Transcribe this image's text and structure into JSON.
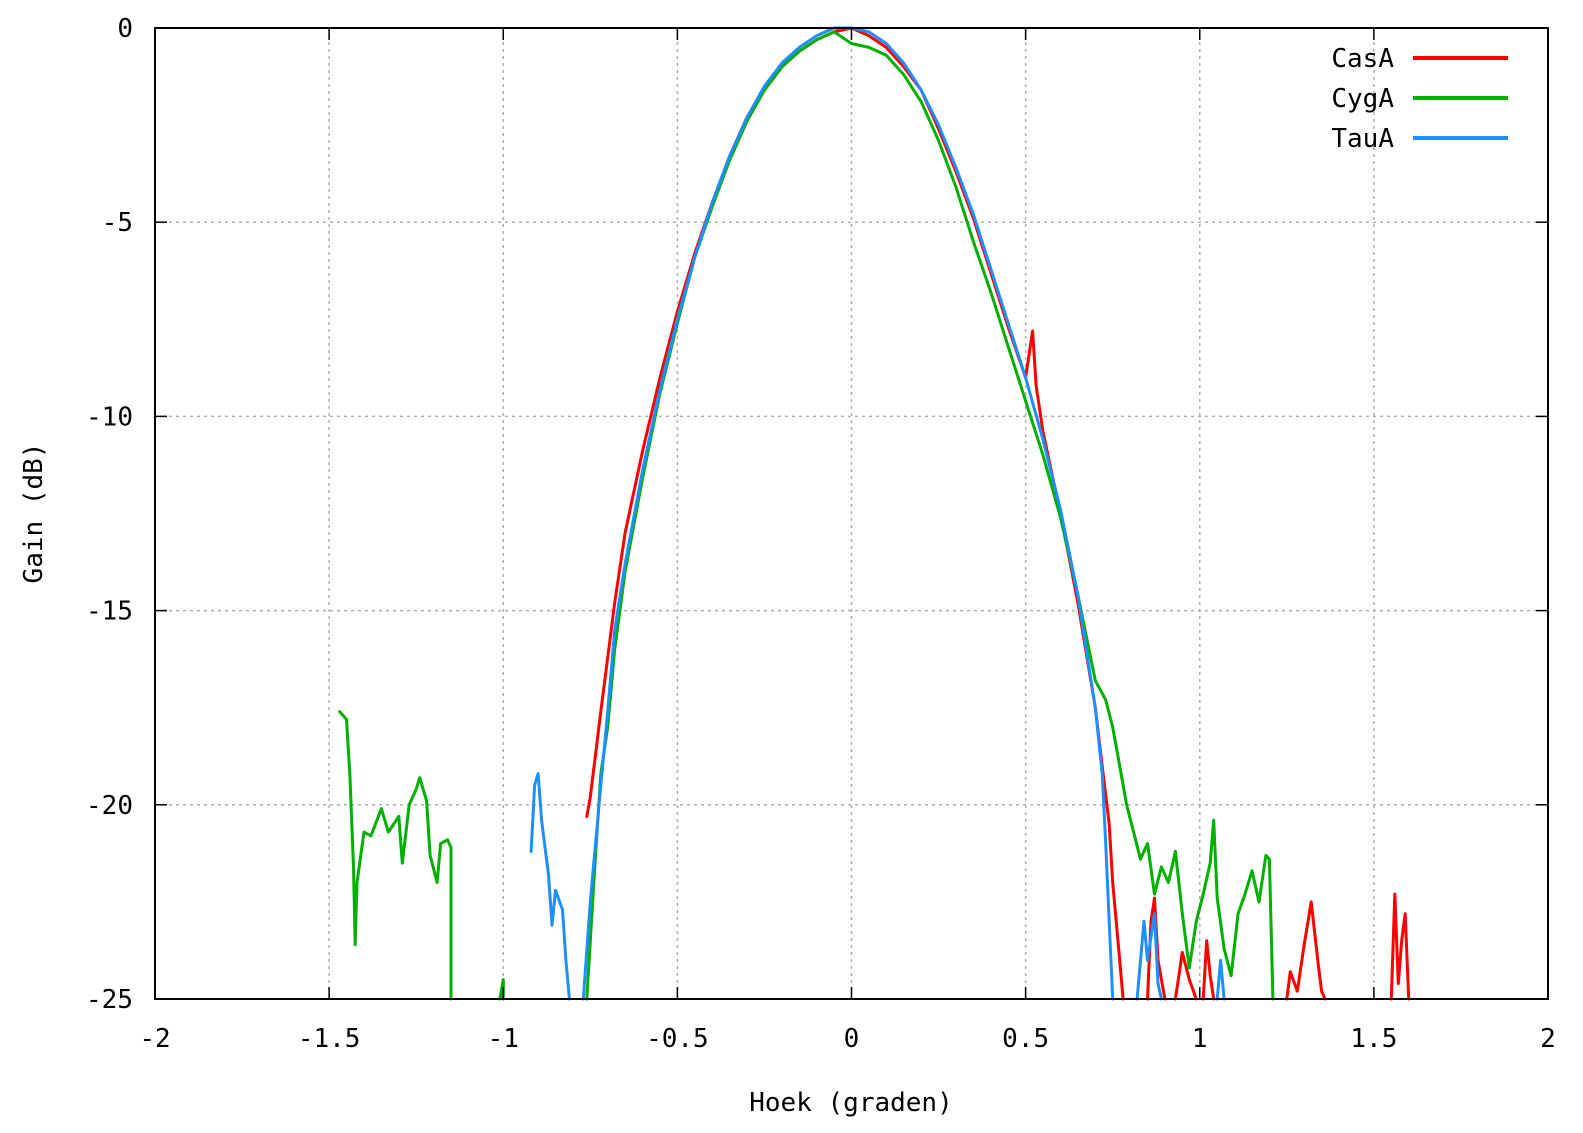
{
  "chart_data": {
    "type": "line",
    "title": "",
    "xlabel": "Hoek (graden)",
    "ylabel": "Gain (dB)",
    "xlim": [
      -2,
      2
    ],
    "ylim": [
      -25,
      0
    ],
    "x_ticks": [
      -2,
      -1.5,
      -1,
      -0.5,
      0,
      0.5,
      1,
      1.5,
      2
    ],
    "x_tick_labels": [
      "-2",
      "-1.5",
      "-1",
      "-0.5",
      "0",
      "0.5",
      "1",
      "1.5",
      "2"
    ],
    "y_ticks": [
      0,
      -5,
      -10,
      -15,
      -20,
      -25
    ],
    "y_tick_labels": [
      "0",
      "-5",
      "-10",
      "-15",
      "-20",
      "-25"
    ],
    "grid": true,
    "legend_position": "top-right",
    "series": [
      {
        "name": "CasA",
        "color": "#ff0000",
        "segments": [
          [
            [
              -0.76,
              -20.3
            ],
            [
              -0.75,
              -19.8
            ],
            [
              -0.72,
              -17.6
            ],
            [
              -0.68,
              -14.8
            ],
            [
              -0.65,
              -13.0
            ],
            [
              -0.6,
              -10.9
            ],
            [
              -0.55,
              -9.0
            ],
            [
              -0.5,
              -7.3
            ],
            [
              -0.45,
              -5.8
            ],
            [
              -0.4,
              -4.5
            ],
            [
              -0.35,
              -3.3
            ],
            [
              -0.3,
              -2.3
            ],
            [
              -0.25,
              -1.6
            ],
            [
              -0.2,
              -1.0
            ],
            [
              -0.15,
              -0.6
            ],
            [
              -0.1,
              -0.3
            ],
            [
              -0.05,
              -0.1
            ],
            [
              0.0,
              0.0
            ],
            [
              0.05,
              -0.2
            ],
            [
              0.1,
              -0.5
            ],
            [
              0.15,
              -1.0
            ],
            [
              0.2,
              -1.6
            ],
            [
              0.25,
              -2.6
            ],
            [
              0.3,
              -3.7
            ],
            [
              0.35,
              -4.9
            ],
            [
              0.4,
              -6.3
            ],
            [
              0.45,
              -7.7
            ],
            [
              0.5,
              -9.0
            ],
            [
              0.52,
              -7.8
            ],
            [
              0.53,
              -9.2
            ],
            [
              0.55,
              -10.4
            ],
            [
              0.6,
              -12.5
            ],
            [
              0.65,
              -14.8
            ],
            [
              0.7,
              -17.5
            ],
            [
              0.72,
              -19.0
            ],
            [
              0.74,
              -20.5
            ],
            [
              0.75,
              -22.0
            ],
            [
              0.77,
              -24.0
            ],
            [
              0.78,
              -25.0
            ]
          ],
          [
            [
              0.85,
              -25.0
            ],
            [
              0.86,
              -23.0
            ],
            [
              0.87,
              -22.4
            ],
            [
              0.88,
              -24.0
            ],
            [
              0.9,
              -25.0
            ]
          ],
          [
            [
              0.93,
              -25.0
            ],
            [
              0.95,
              -23.8
            ],
            [
              0.97,
              -24.5
            ],
            [
              0.99,
              -25.0
            ]
          ],
          [
            [
              1.01,
              -25.0
            ],
            [
              1.02,
              -23.5
            ],
            [
              1.03,
              -24.4
            ],
            [
              1.04,
              -25.0
            ]
          ],
          [
            [
              1.25,
              -25.0
            ],
            [
              1.26,
              -24.3
            ],
            [
              1.28,
              -24.8
            ],
            [
              1.3,
              -23.6
            ],
            [
              1.32,
              -22.5
            ],
            [
              1.34,
              -24.1
            ],
            [
              1.35,
              -24.8
            ],
            [
              1.36,
              -25.0
            ]
          ],
          [
            [
              1.55,
              -25.0
            ],
            [
              1.56,
              -22.3
            ],
            [
              1.57,
              -24.6
            ],
            [
              1.58,
              -23.5
            ],
            [
              1.59,
              -22.8
            ],
            [
              1.6,
              -25.0
            ]
          ]
        ]
      },
      {
        "name": "CygA",
        "color": "#00b000",
        "segments": [
          [
            [
              -1.47,
              -17.6
            ],
            [
              -1.45,
              -17.8
            ],
            [
              -1.44,
              -19.3
            ],
            [
              -1.43,
              -21.6
            ],
            [
              -1.425,
              -23.6
            ],
            [
              -1.42,
              -22.0
            ],
            [
              -1.4,
              -20.7
            ],
            [
              -1.38,
              -20.8
            ],
            [
              -1.35,
              -20.1
            ],
            [
              -1.33,
              -20.7
            ],
            [
              -1.3,
              -20.3
            ],
            [
              -1.29,
              -21.5
            ],
            [
              -1.27,
              -20.0
            ],
            [
              -1.25,
              -19.6
            ],
            [
              -1.24,
              -19.3
            ],
            [
              -1.22,
              -19.9
            ],
            [
              -1.21,
              -21.3
            ],
            [
              -1.19,
              -22.0
            ],
            [
              -1.18,
              -21.0
            ],
            [
              -1.16,
              -20.9
            ],
            [
              -1.15,
              -21.1
            ],
            [
              -1.15,
              -25.0
            ]
          ],
          [
            [
              -1.01,
              -25.0
            ],
            [
              -1.0,
              -24.5
            ],
            [
              -1.0,
              -25.0
            ]
          ],
          [
            [
              -0.76,
              -25.0
            ],
            [
              -0.74,
              -22.0
            ],
            [
              -0.72,
              -19.2
            ],
            [
              -0.7,
              -18.0
            ],
            [
              -0.68,
              -16.0
            ],
            [
              -0.65,
              -14.0
            ],
            [
              -0.6,
              -11.6
            ],
            [
              -0.55,
              -9.4
            ],
            [
              -0.5,
              -7.6
            ],
            [
              -0.45,
              -5.9
            ],
            [
              -0.4,
              -4.6
            ],
            [
              -0.35,
              -3.4
            ],
            [
              -0.3,
              -2.4
            ],
            [
              -0.25,
              -1.6
            ],
            [
              -0.2,
              -1.0
            ],
            [
              -0.15,
              -0.6
            ],
            [
              -0.1,
              -0.3
            ],
            [
              -0.05,
              -0.1
            ],
            [
              0.0,
              -0.4
            ],
            [
              0.05,
              -0.5
            ],
            [
              0.1,
              -0.7
            ],
            [
              0.15,
              -1.2
            ],
            [
              0.2,
              -1.9
            ],
            [
              0.25,
              -2.9
            ],
            [
              0.3,
              -4.1
            ],
            [
              0.35,
              -5.5
            ],
            [
              0.4,
              -6.8
            ],
            [
              0.45,
              -8.2
            ],
            [
              0.5,
              -9.6
            ],
            [
              0.55,
              -11.0
            ],
            [
              0.6,
              -12.6
            ],
            [
              0.65,
              -14.6
            ],
            [
              0.7,
              -16.8
            ],
            [
              0.73,
              -17.3
            ],
            [
              0.75,
              -18.0
            ],
            [
              0.77,
              -19.0
            ],
            [
              0.79,
              -20.0
            ],
            [
              0.81,
              -20.7
            ],
            [
              0.83,
              -21.4
            ],
            [
              0.85,
              -21.0
            ],
            [
              0.87,
              -22.3
            ],
            [
              0.89,
              -21.6
            ],
            [
              0.91,
              -22.0
            ],
            [
              0.93,
              -21.2
            ],
            [
              0.95,
              -22.8
            ],
            [
              0.97,
              -24.2
            ],
            [
              0.99,
              -23.0
            ],
            [
              1.01,
              -22.3
            ],
            [
              1.03,
              -21.5
            ],
            [
              1.04,
              -20.4
            ],
            [
              1.05,
              -22.4
            ],
            [
              1.07,
              -23.7
            ],
            [
              1.09,
              -24.4
            ],
            [
              1.11,
              -22.8
            ],
            [
              1.13,
              -22.3
            ],
            [
              1.15,
              -21.7
            ],
            [
              1.17,
              -22.5
            ],
            [
              1.19,
              -21.3
            ],
            [
              1.2,
              -21.4
            ],
            [
              1.21,
              -25.0
            ]
          ]
        ]
      },
      {
        "name": "TauA",
        "color": "#1e8fff",
        "segments": [
          [
            [
              -0.92,
              -21.2
            ],
            [
              -0.91,
              -19.5
            ],
            [
              -0.9,
              -19.2
            ],
            [
              -0.89,
              -20.4
            ],
            [
              -0.87,
              -21.8
            ],
            [
              -0.86,
              -23.1
            ],
            [
              -0.85,
              -22.2
            ],
            [
              -0.83,
              -22.7
            ],
            [
              -0.82,
              -24.0
            ],
            [
              -0.81,
              -25.0
            ]
          ],
          [
            [
              -0.77,
              -25.0
            ],
            [
              -0.75,
              -22.5
            ],
            [
              -0.72,
              -19.5
            ],
            [
              -0.7,
              -17.6
            ],
            [
              -0.68,
              -15.5
            ],
            [
              -0.65,
              -13.8
            ],
            [
              -0.6,
              -11.4
            ],
            [
              -0.55,
              -9.3
            ],
            [
              -0.5,
              -7.5
            ],
            [
              -0.45,
              -5.9
            ],
            [
              -0.4,
              -4.5
            ],
            [
              -0.35,
              -3.3
            ],
            [
              -0.3,
              -2.3
            ],
            [
              -0.25,
              -1.5
            ],
            [
              -0.2,
              -0.9
            ],
            [
              -0.15,
              -0.5
            ],
            [
              -0.1,
              -0.2
            ],
            [
              -0.05,
              0.0
            ],
            [
              0.0,
              0.0
            ],
            [
              0.05,
              -0.1
            ],
            [
              0.1,
              -0.4
            ],
            [
              0.15,
              -0.9
            ],
            [
              0.2,
              -1.6
            ],
            [
              0.25,
              -2.5
            ],
            [
              0.3,
              -3.6
            ],
            [
              0.35,
              -4.8
            ],
            [
              0.4,
              -6.2
            ],
            [
              0.45,
              -7.6
            ],
            [
              0.5,
              -9.0
            ],
            [
              0.55,
              -10.6
            ],
            [
              0.6,
              -12.4
            ],
            [
              0.65,
              -14.6
            ],
            [
              0.7,
              -17.5
            ],
            [
              0.72,
              -19.2
            ],
            [
              0.73,
              -21.0
            ],
            [
              0.74,
              -23.0
            ],
            [
              0.75,
              -25.0
            ]
          ],
          [
            [
              0.82,
              -25.0
            ],
            [
              0.84,
              -23.0
            ],
            [
              0.85,
              -24.0
            ],
            [
              0.87,
              -22.8
            ],
            [
              0.88,
              -24.6
            ],
            [
              0.89,
              -25.0
            ]
          ],
          [
            [
              1.05,
              -25.0
            ],
            [
              1.06,
              -24.0
            ],
            [
              1.07,
              -25.0
            ]
          ]
        ]
      }
    ]
  }
}
